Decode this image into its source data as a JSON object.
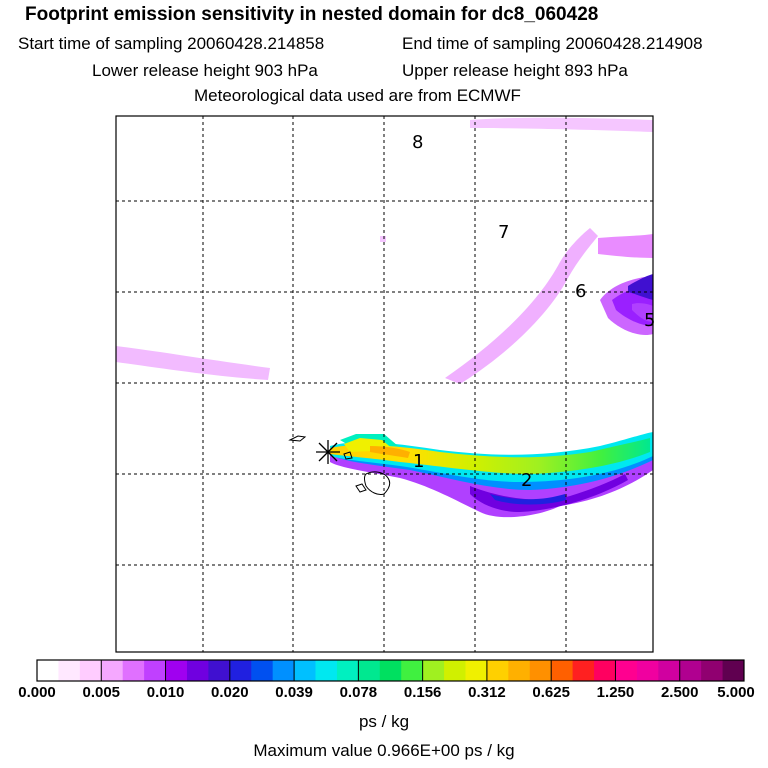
{
  "header": {
    "title": "Footprint emission sensitivity in nested domain for dc8_060428",
    "start_sampling": "Start time of sampling 20060428.214858",
    "end_sampling": "End time of sampling 20060428.214908",
    "lower_release": "Lower release height  903 hPa",
    "upper_release": "Upper release height  893 hPa",
    "met_data": "Meteorological data used are from ECMWF"
  },
  "map": {
    "day_labels": [
      "1",
      "2",
      "5",
      "6",
      "7",
      "8"
    ],
    "grid": "dashed"
  },
  "colorbar": {
    "ticks": [
      "0.000",
      "0.005",
      "0.010",
      "0.020",
      "0.039",
      "0.078",
      "0.156",
      "0.312",
      "0.625",
      "1.250",
      "2.500",
      "5.000"
    ],
    "colors": [
      "#ffffff",
      "#ffe8ff",
      "#ffccff",
      "#f5a8ff",
      "#e070ff",
      "#c040ff",
      "#a000f0",
      "#7000e0",
      "#4010d0",
      "#2020e0",
      "#0050f0",
      "#0090ff",
      "#00c0ff",
      "#00e8f0",
      "#00f0c0",
      "#00e890",
      "#00e060",
      "#40f040",
      "#a0f020",
      "#d0f000",
      "#f0f000",
      "#ffd000",
      "#ffb000",
      "#ff9000",
      "#ff6000",
      "#ff2020",
      "#ff0060",
      "#ff0090",
      "#f000a0",
      "#d000a0",
      "#b00090",
      "#900070",
      "#600050"
    ],
    "unit": "ps / kg"
  },
  "footer": {
    "max_value": "Maximum value  0.966E+00 ps / kg"
  }
}
